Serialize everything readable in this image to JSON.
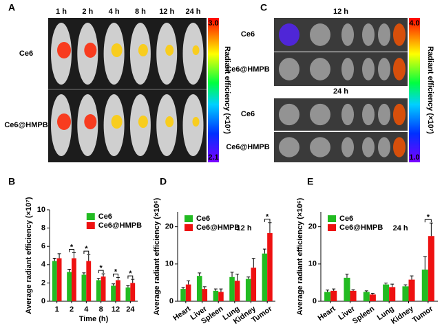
{
  "panel_labels": [
    "A",
    "B",
    "C",
    "D",
    "E"
  ],
  "panel_a": {
    "columns": [
      "1 h",
      "2 h",
      "4 h",
      "8 h",
      "12 h",
      "24 h"
    ],
    "rows": [
      "Ce6",
      "Ce6@HMPB"
    ],
    "colorbar": {
      "max": "3.0",
      "min": "2.1",
      "label": "Radiant efficiency (×10⁷)"
    }
  },
  "panel_c": {
    "groups": [
      {
        "time": "12 h",
        "rows": [
          "Ce6",
          "Ce6@HMPB"
        ]
      },
      {
        "time": "24 h",
        "rows": [
          "Ce6",
          "Ce6@HMPB"
        ]
      }
    ],
    "colorbar": {
      "max": "4.0",
      "min": "1.0",
      "label": "Radiant efficiency (×10⁷)"
    }
  },
  "chart_data": [
    {
      "type": "bar",
      "x_label": "Time (h)",
      "y_label": "Average radiant efficiency (×10⁷)",
      "categories": [
        "1",
        "2",
        "4",
        "8",
        "12",
        "24"
      ],
      "series": [
        {
          "name": "Ce6",
          "color": "#22bb22",
          "values": [
            4.4,
            3.2,
            2.9,
            2.3,
            1.7,
            1.5
          ],
          "errors": [
            0.3,
            0.3,
            0.2,
            0.2,
            0.2,
            0.2
          ]
        },
        {
          "name": "Ce6@HMPB",
          "color": "#ee1111",
          "values": [
            4.7,
            4.7,
            4.4,
            2.7,
            2.3,
            2.0
          ],
          "errors": [
            0.5,
            0.6,
            0.7,
            0.3,
            0.3,
            0.4
          ]
        }
      ],
      "significance": [
        {
          "category": "2",
          "label": "*"
        },
        {
          "category": "4",
          "label": "*"
        },
        {
          "category": "8",
          "label": "*"
        },
        {
          "category": "12",
          "label": "*"
        },
        {
          "category": "24",
          "label": "*"
        }
      ],
      "ylim": [
        0,
        10
      ],
      "yticks": [
        0,
        2,
        4,
        6,
        8,
        10
      ],
      "legend": "upper right"
    },
    {
      "type": "bar",
      "y_label": "Average radiant efficiency (×10⁶)",
      "annotation": "12 h",
      "categories": [
        "Heart",
        "Liver",
        "Spleen",
        "Lung",
        "Kidney",
        "Tumor"
      ],
      "series": [
        {
          "name": "Ce6",
          "color": "#22bb22",
          "values": [
            3.3,
            6.8,
            2.8,
            6.5,
            6.0,
            12.8
          ],
          "errors": [
            0.4,
            0.8,
            0.5,
            1.3,
            0.5,
            1.2
          ]
        },
        {
          "name": "Ce6@HMPB",
          "color": "#ee1111",
          "values": [
            4.5,
            3.3,
            2.5,
            5.5,
            9.0,
            18.3
          ],
          "errors": [
            1.0,
            0.6,
            0.8,
            1.8,
            2.5,
            2.8
          ]
        }
      ],
      "significance": [
        {
          "category": "Tumor",
          "label": "*"
        }
      ],
      "ylim": [
        0,
        24
      ],
      "yticks": [
        0,
        10,
        20
      ],
      "legend": "upper left"
    },
    {
      "type": "bar",
      "y_label": "Average radiant efficiency (×10⁶)",
      "annotation": "24 h",
      "categories": [
        "Heart",
        "Liver",
        "Spleen",
        "Lung",
        "Kidney",
        "Tumor"
      ],
      "series": [
        {
          "name": "Ce6",
          "color": "#22bb22",
          "values": [
            2.5,
            6.3,
            2.5,
            4.5,
            4.0,
            8.5
          ],
          "errors": [
            0.5,
            1.0,
            0.3,
            0.4,
            0.4,
            3.5
          ]
        },
        {
          "name": "Ce6@HMPB",
          "color": "#ee1111",
          "values": [
            2.8,
            2.8,
            1.8,
            3.8,
            5.8,
            17.5
          ],
          "errors": [
            0.5,
            0.3,
            0.3,
            0.8,
            1.0,
            3.5
          ]
        }
      ],
      "significance": [
        {
          "category": "Tumor",
          "label": "*"
        }
      ],
      "ylim": [
        0,
        24
      ],
      "yticks": [
        0,
        10,
        20
      ],
      "legend": "upper left"
    }
  ]
}
